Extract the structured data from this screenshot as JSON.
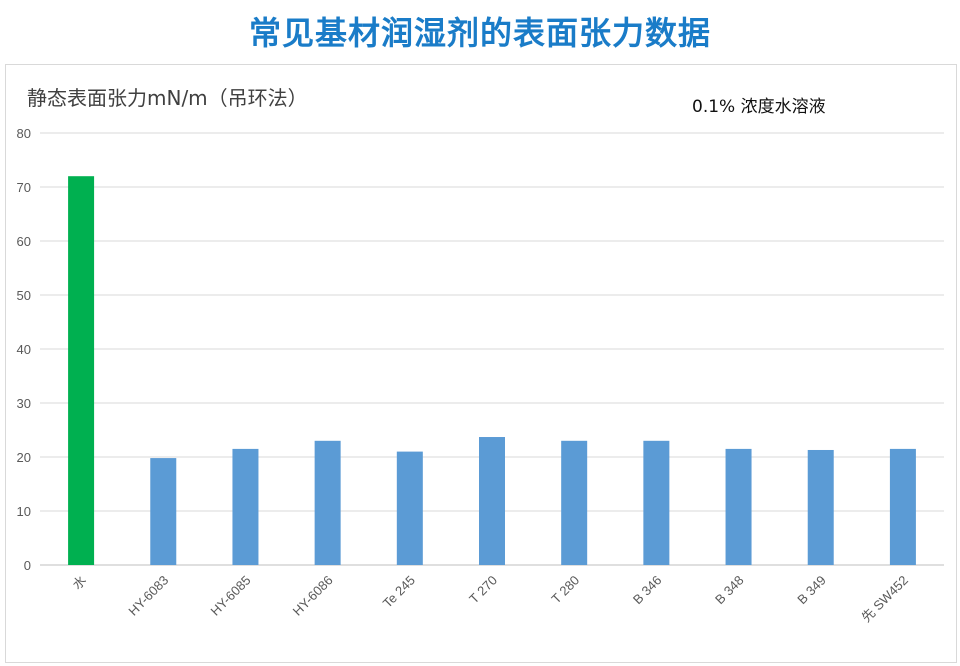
{
  "title": "常见基材润湿剂的表面张力数据",
  "chart_data": {
    "type": "bar",
    "ylabel": "静态表面张力mN/m（吊环法）",
    "annotation": "0.1% 浓度水溶液",
    "ylim": [
      0,
      80
    ],
    "yticks": [
      0,
      10,
      20,
      30,
      40,
      50,
      60,
      70,
      80
    ],
    "grid": true,
    "categories": [
      "水",
      "HY-6083",
      "HY-6085",
      "HY-6086",
      "Te 245",
      "T 270",
      "T 280",
      "B 346",
      "B 348",
      "B 349",
      "先 SW452"
    ],
    "values": [
      72,
      19.8,
      21.5,
      23,
      21,
      23.7,
      23,
      23,
      21.5,
      21.3,
      21.5
    ],
    "colors": [
      "#00b050",
      "#5b9bd5",
      "#5b9bd5",
      "#5b9bd5",
      "#5b9bd5",
      "#5b9bd5",
      "#5b9bd5",
      "#5b9bd5",
      "#5b9bd5",
      "#5b9bd5",
      "#5b9bd5"
    ]
  }
}
